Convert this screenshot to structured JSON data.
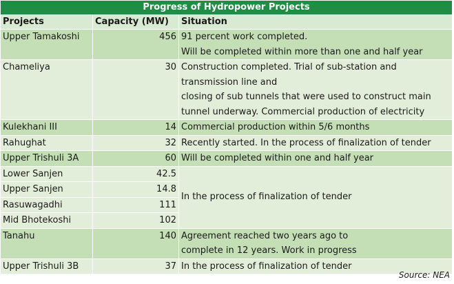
{
  "title": "Progress of Hydropower Projects",
  "headers": {
    "project": "Projects",
    "capacity": "Capacity (MW)",
    "situation": "Situation"
  },
  "rows": [
    {
      "project": "Upper Tamakoshi",
      "capacity": "456",
      "situation": [
        "91 percent work completed.",
        "Will be completed within more than one and half year"
      ]
    },
    {
      "project": "Chameliya",
      "capacity": "30",
      "situation": [
        "Construction completed. Trial of sub-station and",
        "transmission line and",
        "closing of sub tunnels that were used to construct main",
        "tunnel underway. Commercial production of electricity"
      ]
    },
    {
      "project": "Kulekhani III",
      "capacity": "14",
      "situation": [
        "Commercial production within 5/6 months"
      ]
    },
    {
      "project": "Rahughat",
      "capacity": "32",
      "situation": [
        "Recently started. In the process of finalization of tender"
      ]
    },
    {
      "project": "Upper Trishuli 3A",
      "capacity": "60",
      "situation": [
        "Will be completed within one and half year"
      ]
    },
    {
      "project": "Lower Sanjen",
      "capacity": "42.5"
    },
    {
      "project": "Upper Sanjen",
      "capacity": "14.8"
    },
    {
      "project": "Rasuwagadhi",
      "capacity": "111"
    },
    {
      "project": "Mid Bhotekoshi",
      "capacity": "102"
    },
    {
      "project": "Tanahu",
      "capacity": "140",
      "situation": [
        "Agreement reached two years ago to",
        "complete in 12 years. Work in progress"
      ]
    },
    {
      "project": "Upper Trishuli 3B",
      "capacity": "37",
      "situation": [
        "In the process of finalization of tender"
      ]
    }
  ],
  "merged_situation": "In the process of finalization of tender",
  "source": "Source: NEA",
  "colors": {
    "title_bg": "#1f8d43",
    "row_dark": "#c4dfb5",
    "row_light": "#e2eed9",
    "header_bg": "#d9ead3"
  }
}
